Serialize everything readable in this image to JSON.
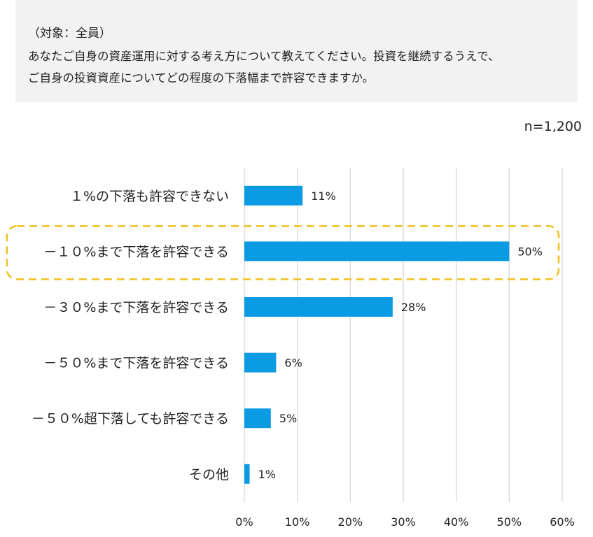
{
  "question": {
    "target": "（対象：全員）",
    "line1": "あなたご自身の資産運用に対する考え方について教えてください。投資を継続するうえで、",
    "line2": "ご自身の投資資産についてどの程度の下落幅まで許容できますか。"
  },
  "sample": "n=1,200",
  "chart_data": {
    "type": "bar",
    "orientation": "horizontal",
    "title": "",
    "xlabel": "",
    "ylabel": "",
    "categories": [
      "１%の下落も許容できない",
      "－１０%まで下落を許容できる",
      "－３０%まで下落を許容できる",
      "－５０%まで下落を許容できる",
      "－５０%超下落しても許容できる",
      "その他"
    ],
    "values": [
      11,
      50,
      28,
      6,
      5,
      1
    ],
    "value_labels": [
      "11%",
      "50%",
      "28%",
      "6%",
      "5%",
      "1%"
    ],
    "xlim": [
      0,
      60
    ],
    "x_ticks": [
      0,
      10,
      20,
      30,
      40,
      50,
      60
    ],
    "x_tick_labels": [
      "0%",
      "10%",
      "20%",
      "30%",
      "40%",
      "50%",
      "60%"
    ],
    "grid": true,
    "highlighted_category_index": 1,
    "colors": {
      "bar": "#0a9be2",
      "grid": "#d9d9d9",
      "highlight": "#f0c020"
    }
  }
}
